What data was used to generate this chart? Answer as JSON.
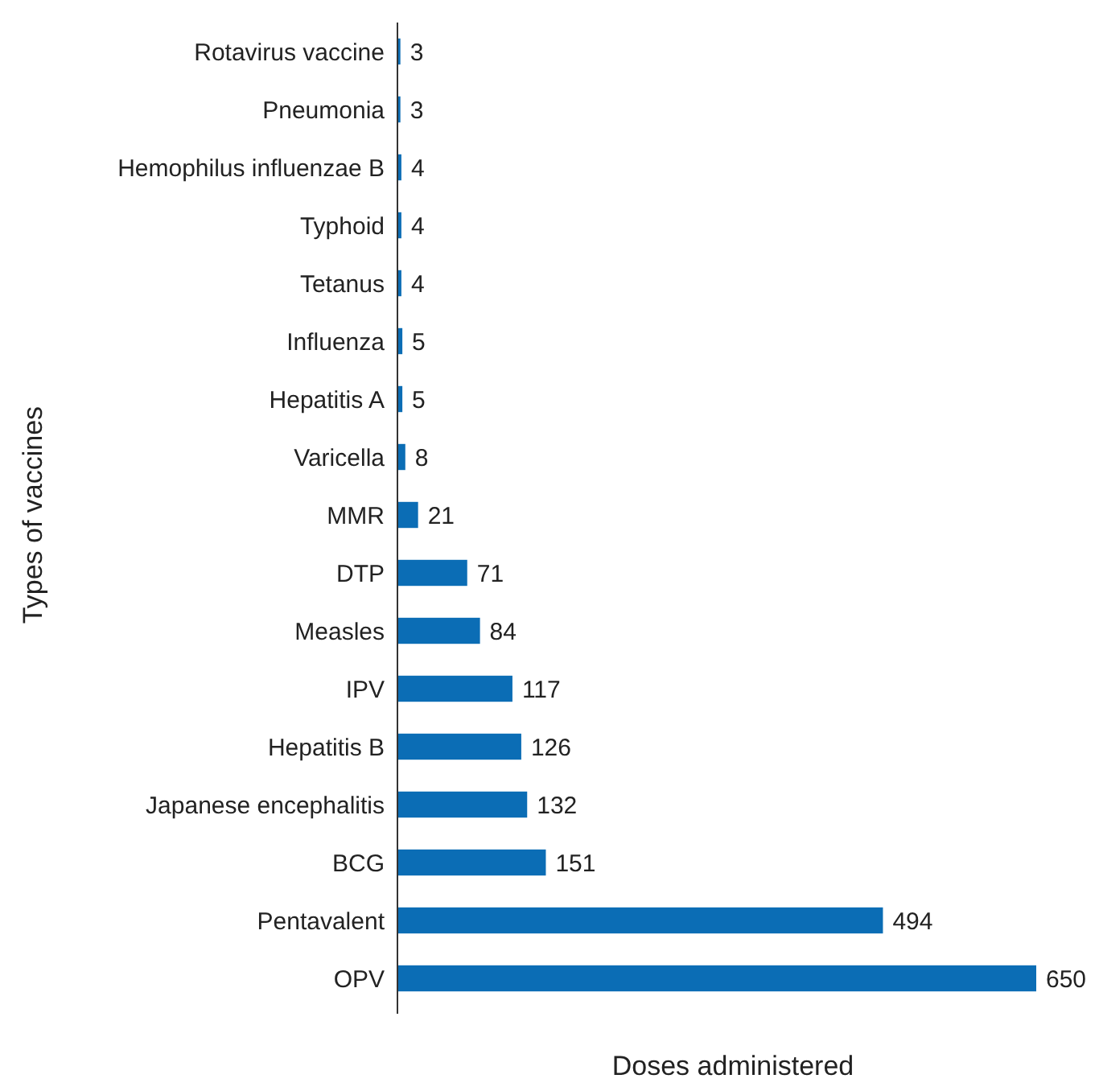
{
  "chart_data": {
    "type": "bar",
    "orientation": "horizontal",
    "xlabel": "Doses administered",
    "ylabel": "Types of vaccines",
    "categories": [
      "Rotavirus vaccine",
      "Pneumonia",
      "Hemophilus influenzae B",
      "Typhoid",
      "Tetanus",
      "Influenza",
      "Hepatitis A",
      "Varicella",
      "MMR",
      "DTP",
      "Measles",
      "IPV",
      "Hepatitis B",
      "Japanese encephalitis",
      "BCG",
      "Pentavalent",
      "OPV"
    ],
    "values": [
      3,
      3,
      4,
      4,
      4,
      5,
      5,
      8,
      21,
      71,
      84,
      117,
      126,
      132,
      151,
      494,
      650
    ],
    "color": "#0b6db5",
    "xlim": [
      0,
      650
    ],
    "tick_labels": "y",
    "data_labels": true
  }
}
